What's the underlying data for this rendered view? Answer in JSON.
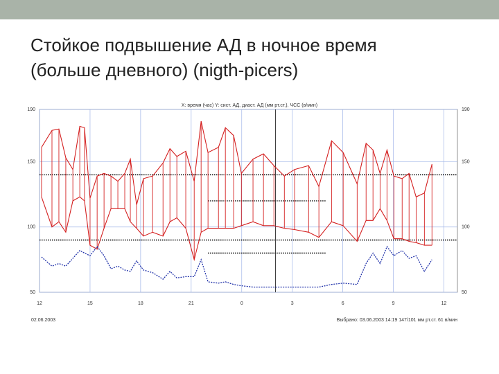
{
  "slide": {
    "title_lines": [
      "Стойкое подвышение АД в ночное время",
      "(больше дневного) (nigth-picers)"
    ]
  },
  "chart_data": {
    "type": "line",
    "title": "X: время (час)  Y: сист. АД, диаст. АД (мм рт.ст.), ЧСС (в/мин)",
    "footer_left": "02.06.2003",
    "footer_right": "Выбрано: 03.06.2003 14:19 147/101 мм рт.ст. 61 в/мин",
    "x": [
      12.12,
      12.74,
      13.15,
      13.56,
      13.98,
      14.39,
      14.67,
      15.0,
      15.42,
      15.83,
      16.24,
      16.65,
      17.06,
      17.39,
      17.76,
      18.17,
      18.71,
      19.33,
      19.74,
      20.15,
      20.68,
      21.18,
      21.59,
      22.0,
      22.62,
      23.03,
      23.52,
      23.98,
      24.67,
      25.29,
      25.91,
      26.53,
      27.14,
      27.97,
      28.58,
      29.33,
      30.02,
      30.85,
      31.38,
      31.79,
      32.21,
      32.62,
      33.03,
      33.52,
      33.93,
      34.35,
      34.84,
      35.29
    ],
    "series": [
      {
        "color": "#d42020",
        "style": "solid",
        "values": [
          161,
          174,
          175,
          153,
          144,
          177,
          176,
          122,
          139,
          141,
          139,
          135,
          141,
          152,
          117,
          137,
          139,
          149,
          160,
          154,
          158,
          135,
          181,
          157,
          161,
          176,
          170,
          141,
          152,
          156,
          147,
          139,
          144,
          147,
          131,
          166,
          157,
          133,
          164,
          159,
          141,
          159,
          139,
          137,
          141,
          123,
          126,
          148
        ]
      },
      {
        "color": "#d42020",
        "style": "solid",
        "values": [
          123,
          100,
          104,
          96,
          120,
          123,
          120,
          86,
          83,
          99,
          114,
          114,
          114,
          104,
          99,
          93,
          96,
          93,
          104,
          107,
          99,
          75,
          96,
          99,
          99,
          99,
          99,
          101,
          104,
          101,
          101,
          99,
          98,
          96,
          92,
          104,
          101,
          89,
          105,
          105,
          114,
          105,
          91,
          91,
          89,
          88,
          86,
          86
        ]
      },
      {
        "color": "#2233aa",
        "style": "dotted",
        "values": [
          77,
          70,
          72,
          70,
          76,
          82,
          80,
          78,
          85,
          78,
          68,
          70,
          67,
          66,
          74,
          67,
          65,
          60,
          66,
          61,
          62,
          62,
          75,
          58,
          57,
          58,
          56,
          55,
          54,
          54,
          54,
          54,
          54,
          54,
          54,
          56,
          57,
          56,
          72,
          80,
          72,
          85,
          78,
          82,
          76,
          78,
          66,
          75
        ]
      }
    ],
    "xlim": [
      12,
      36.8
    ],
    "xticks": [
      12,
      15,
      18,
      21,
      {
        "value": 24,
        "label": "0"
      },
      {
        "value": 27,
        "label": "3"
      },
      {
        "value": 30,
        "label": "6"
      },
      {
        "value": 33,
        "label": "9"
      },
      {
        "value": 36,
        "label": "12"
      }
    ],
    "ylim": [
      50,
      190
    ],
    "yticks": [
      50,
      100,
      150,
      190
    ],
    "grid": true,
    "grid_color": "#9fb4e8",
    "threshold_lines": [
      {
        "y": 140,
        "x": [
          12,
          36.8
        ]
      },
      {
        "y": 90,
        "x": [
          12,
          36.8
        ]
      },
      {
        "y": 120,
        "x": [
          22,
          29
        ]
      },
      {
        "y": 80,
        "x": [
          22,
          29
        ]
      }
    ],
    "marker_x": 26
  }
}
